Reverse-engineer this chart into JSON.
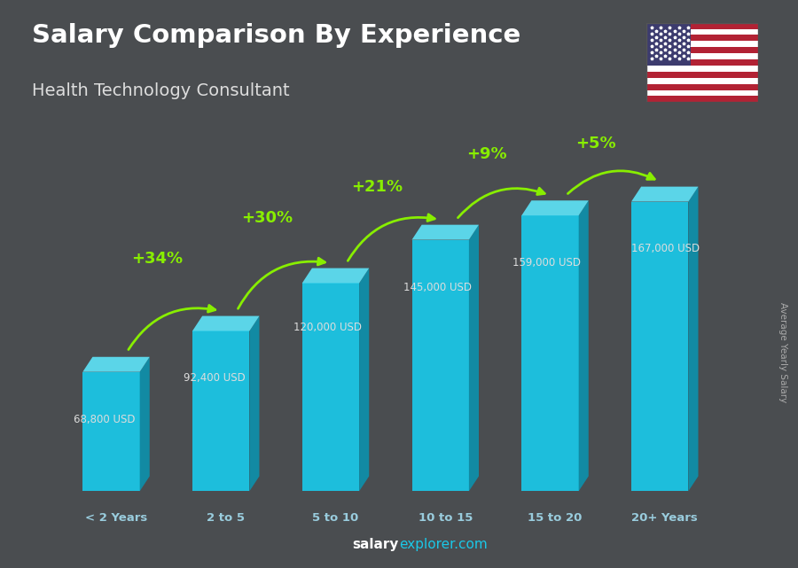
{
  "title": "Salary Comparison By Experience",
  "subtitle": "Health Technology Consultant",
  "categories": [
    "< 2 Years",
    "2 to 5",
    "5 to 10",
    "10 to 15",
    "15 to 20",
    "20+ Years"
  ],
  "values": [
    68800,
    92400,
    120000,
    145000,
    159000,
    167000
  ],
  "value_labels": [
    "68,800 USD",
    "92,400 USD",
    "120,000 USD",
    "145,000 USD",
    "159,000 USD",
    "167,000 USD"
  ],
  "pct_changes": [
    "+34%",
    "+30%",
    "+21%",
    "+9%",
    "+5%"
  ],
  "bar_face_color": "#1ac8e8",
  "bar_side_color": "#0e8faa",
  "bar_top_color": "#5de0f5",
  "bg_color": "#4a4d50",
  "ylabel": "Average Yearly Salary",
  "footer_bold": "salary",
  "footer_light": "explorer.com",
  "pct_color": "#88ee00",
  "label_color": "#dddddd",
  "title_color": "#ffffff",
  "subtitle_color": "#dddddd",
  "xlabel_color": "#99ccdd"
}
